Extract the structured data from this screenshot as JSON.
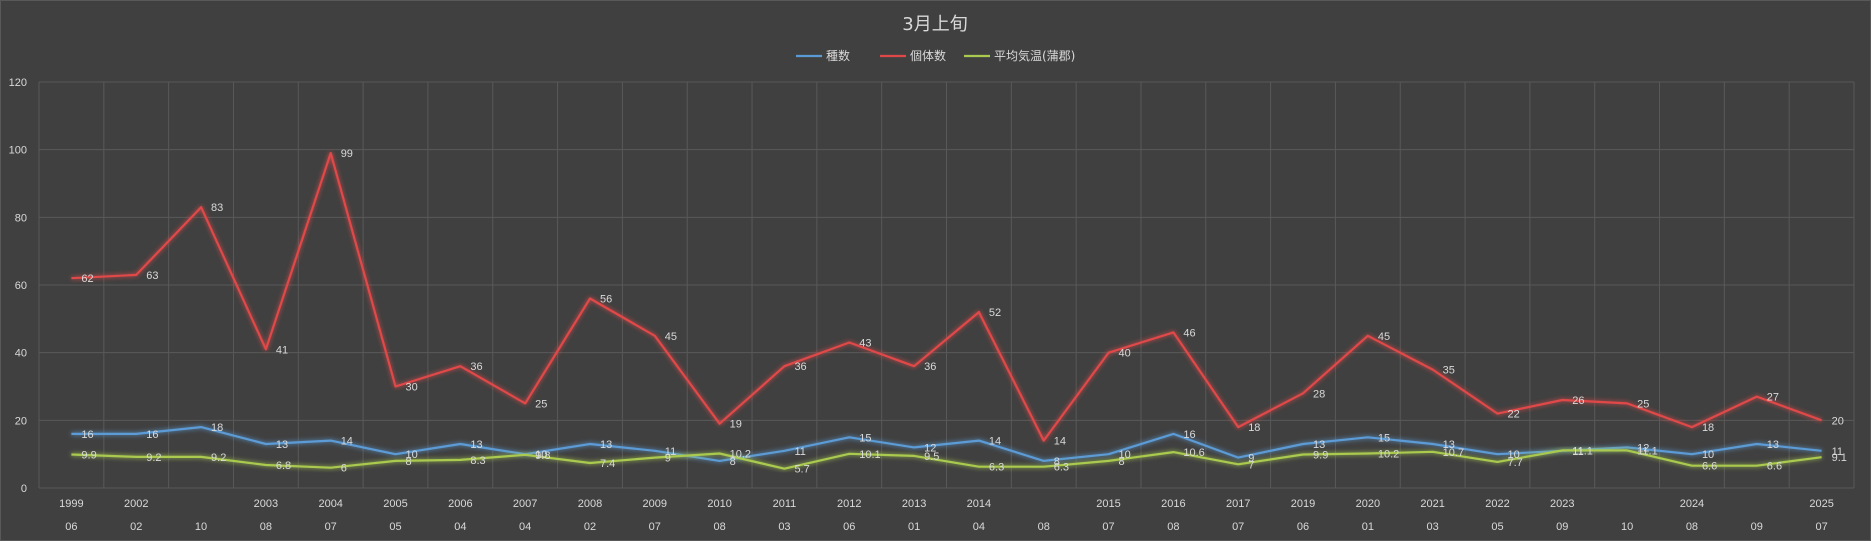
{
  "chart_data": {
    "type": "line",
    "title": "3月上旬",
    "ylim": [
      0,
      120
    ],
    "y_ticks": [
      0,
      20,
      40,
      60,
      80,
      100,
      120
    ],
    "grid": true,
    "legend_position": "top",
    "categories": [
      {
        "year": "1999",
        "month": "06"
      },
      {
        "year": "2002",
        "month": "02"
      },
      {
        "year": "",
        "month": "10"
      },
      {
        "year": "2003",
        "month": "08"
      },
      {
        "year": "2004",
        "month": "07"
      },
      {
        "year": "2005",
        "month": "05"
      },
      {
        "year": "2006",
        "month": "04"
      },
      {
        "year": "2007",
        "month": "04"
      },
      {
        "year": "2008",
        "month": "02"
      },
      {
        "year": "2009",
        "month": "07"
      },
      {
        "year": "2010",
        "month": "08"
      },
      {
        "year": "2011",
        "month": "03"
      },
      {
        "year": "2012",
        "month": "06"
      },
      {
        "year": "2013",
        "month": "01"
      },
      {
        "year": "2014",
        "month": "04"
      },
      {
        "year": "",
        "month": "08"
      },
      {
        "year": "2015",
        "month": "07"
      },
      {
        "year": "2016",
        "month": "08"
      },
      {
        "year": "2017",
        "month": "07"
      },
      {
        "year": "2019",
        "month": "06"
      },
      {
        "year": "2020",
        "month": "01"
      },
      {
        "year": "2021",
        "month": "03"
      },
      {
        "year": "2022",
        "month": "05"
      },
      {
        "year": "2023",
        "month": "09"
      },
      {
        "year": "",
        "month": "10"
      },
      {
        "year": "2024",
        "month": "08"
      },
      {
        "year": "",
        "month": "09"
      },
      {
        "year": "2025",
        "month": "07"
      }
    ],
    "series": [
      {
        "name": "種数",
        "color": "#5b9bd5",
        "values": [
          16,
          16,
          18,
          13,
          14,
          10,
          13,
          10,
          13,
          11,
          8,
          11,
          15,
          12,
          14,
          8,
          10,
          16,
          9,
          13,
          15,
          13,
          10,
          11,
          12,
          10,
          13,
          11
        ],
        "labels": [
          "16",
          "16",
          "18",
          "13",
          "14",
          "10",
          "13",
          "10",
          "13",
          "11",
          "8",
          "11",
          "15",
          "12",
          "14",
          "8",
          "10",
          "16",
          "9",
          "13",
          "15",
          "13",
          "10",
          "11",
          "12",
          "10",
          "13",
          "11"
        ]
      },
      {
        "name": "個体数",
        "color": "#e04848",
        "values": [
          62,
          63,
          83,
          41,
          99,
          30,
          36,
          25,
          56,
          45,
          19,
          36,
          43,
          36,
          52,
          14,
          40,
          46,
          18,
          28,
          45,
          35,
          22,
          26,
          25,
          18,
          27,
          20
        ],
        "labels": [
          "62",
          "63",
          "83",
          "41",
          "99",
          "30",
          "36",
          "25",
          "56",
          "45",
          "19",
          "36",
          "43",
          "36",
          "52",
          "14",
          "40",
          "46",
          "18",
          "28",
          "45",
          "35",
          "22",
          "26",
          "25",
          "18",
          "27",
          "20"
        ]
      },
      {
        "name": "平均気温(蒲郡)",
        "color": "#a9c94f",
        "values": [
          9.9,
          9.2,
          9.2,
          6.8,
          6,
          8,
          8.3,
          9.8,
          7.4,
          9,
          10.2,
          5.7,
          10.1,
          9.5,
          6.3,
          6.3,
          8,
          10.6,
          7,
          9.9,
          10.2,
          10.7,
          7.7,
          11.1,
          11.1,
          6.6,
          6.6,
          9.1
        ],
        "labels": [
          "9.9",
          "9.2",
          "9.2",
          "6.8",
          "6",
          "8",
          "8.3",
          "9.8",
          "7.4",
          "9",
          "10.2",
          "5.7",
          "10.1",
          "9.5",
          "6.3",
          "6.3",
          "8",
          "10.6",
          "7",
          "9.9",
          "10.2",
          "10.7",
          "7.7",
          "11.1",
          "11.1",
          "6.6",
          "6.6",
          "9.1"
        ]
      }
    ]
  }
}
